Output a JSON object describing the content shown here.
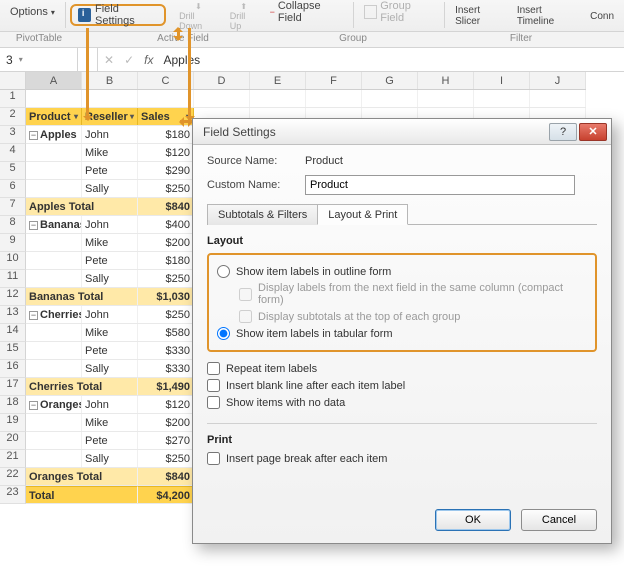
{
  "ribbon": {
    "options": "Options",
    "pivottable_group": "PivotTable",
    "field_settings": "Field Settings",
    "drill_down": "Drill Down",
    "drill_up": "Drill Up",
    "collapse_field": "Collapse Field",
    "active_field_group": "Active Field",
    "group_field": "Group Field",
    "group_group": "Group",
    "insert_slicer": "Insert Slicer",
    "insert_timeline": "Insert Timeline",
    "conn": "Conn",
    "filter_group": "Filter"
  },
  "formula": {
    "namebox": "3",
    "fx": "fx",
    "value": "Apples",
    "check": "✓",
    "cancel": "✕"
  },
  "columns": [
    "A",
    "B",
    "C",
    "D",
    "E",
    "F",
    "G",
    "H",
    "I",
    "J"
  ],
  "pivot": {
    "headers": [
      "Product",
      "Reseller",
      "Sales"
    ],
    "groups": [
      {
        "product": "Apples",
        "rows": [
          [
            "John",
            "$180"
          ],
          [
            "Mike",
            "$120"
          ],
          [
            "Pete",
            "$290"
          ],
          [
            "Sally",
            "$250"
          ]
        ],
        "total_label": "Apples Total",
        "total": "$840"
      },
      {
        "product": "Bananas",
        "rows": [
          [
            "John",
            "$400"
          ],
          [
            "Mike",
            "$200"
          ],
          [
            "Pete",
            "$180"
          ],
          [
            "Sally",
            "$250"
          ]
        ],
        "total_label": "Bananas Total",
        "total": "$1,030"
      },
      {
        "product": "Cherries",
        "rows": [
          [
            "John",
            "$250"
          ],
          [
            "Mike",
            "$580"
          ],
          [
            "Pete",
            "$330"
          ],
          [
            "Sally",
            "$330"
          ]
        ],
        "total_label": "Cherries Total",
        "total": "$1,490"
      },
      {
        "product": "Oranges",
        "rows": [
          [
            "John",
            "$120"
          ],
          [
            "Mike",
            "$200"
          ],
          [
            "Pete",
            "$270"
          ],
          [
            "Sally",
            "$250"
          ]
        ],
        "total_label": "Oranges Total",
        "total": "$840"
      }
    ],
    "grand_label": "Total",
    "grand_total": "$4,200"
  },
  "dialog": {
    "title": "Field Settings",
    "source_label": "Source Name:",
    "source_value": "Product",
    "custom_label": "Custom Name:",
    "custom_value": "Product",
    "tab1": "Subtotals & Filters",
    "tab2": "Layout & Print",
    "layout_header": "Layout",
    "opt_outline": "Show item labels in outline form",
    "opt_compact": "Display labels from the next field in the same column (compact form)",
    "opt_subtop": "Display subtotals at the top of each group",
    "opt_tabular": "Show item labels in tabular form",
    "opt_repeat": "Repeat item labels",
    "opt_blank": "Insert blank line after each item label",
    "opt_nodata": "Show items with no data",
    "print_header": "Print",
    "opt_pagebreak": "Insert page break after each item",
    "ok": "OK",
    "cancel": "Cancel"
  }
}
